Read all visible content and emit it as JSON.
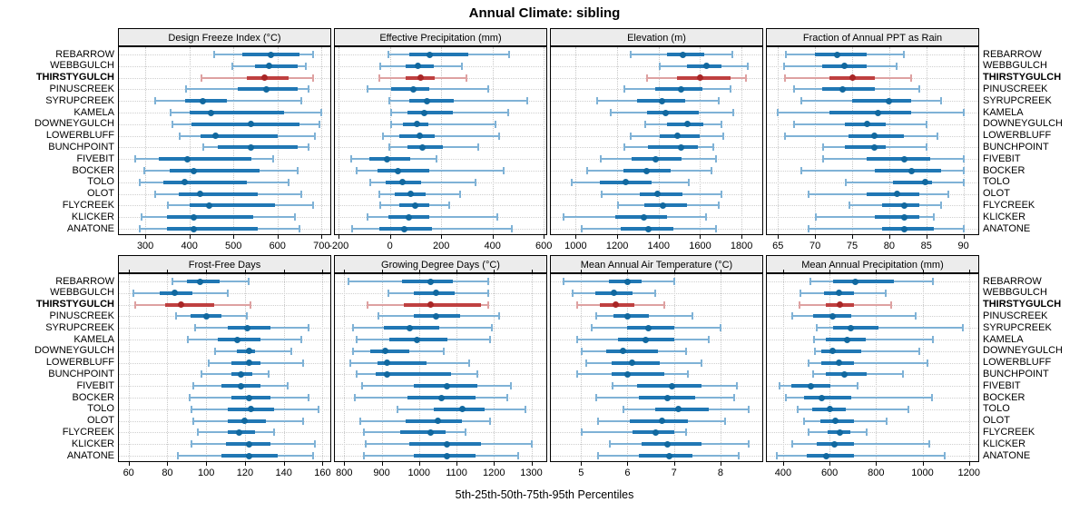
{
  "title": "Annual Climate: sibling",
  "caption": "5th-25th-50th-75th-95th Percentiles",
  "highlight_site": "THIRSTYGULCH",
  "sites": [
    "REBARROW",
    "WEBBGULCH",
    "THIRSTYGULCH",
    "PINUSCREEK",
    "SYRUPCREEK",
    "KAMELA",
    "DOWNEYGULCH",
    "LOWERBLUFF",
    "BUNCHPOINT",
    "FIVEBIT",
    "BOCKER",
    "TOLO",
    "OLOT",
    "FLYCREEK",
    "KLICKER",
    "ANATONE"
  ],
  "colors": {
    "blue_dot": "#11689f",
    "blue_thick": "#2077b4",
    "blue_thin": "#7fb2d6",
    "red_dot": "#a92626",
    "red_thick": "#bf4040",
    "red_thin": "#dea1a1",
    "grid": "#c8c8c8",
    "strip_bg": "#ececec",
    "border": "#000000"
  },
  "chart_data": [
    {
      "type": "scatter",
      "style": "percentile-dotplot",
      "title": "Design Freeze Index (°C)",
      "xlim": [
        240,
        720
      ],
      "xticks": [
        300,
        400,
        500,
        600,
        700
      ],
      "percentile_order": [
        "p5",
        "p25",
        "p50",
        "p75",
        "p95"
      ],
      "values": [
        [
          455,
          520,
          585,
          650,
          680
        ],
        [
          495,
          550,
          580,
          645,
          665
        ],
        [
          425,
          530,
          570,
          625,
          680
        ],
        [
          390,
          510,
          575,
          645,
          670
        ],
        [
          320,
          390,
          430,
          485,
          655
        ],
        [
          355,
          400,
          450,
          615,
          700
        ],
        [
          360,
          405,
          540,
          650,
          695
        ],
        [
          375,
          425,
          460,
          600,
          685
        ],
        [
          430,
          465,
          540,
          645,
          670
        ],
        [
          275,
          330,
          395,
          540,
          590
        ],
        [
          295,
          355,
          410,
          560,
          645
        ],
        [
          285,
          340,
          390,
          530,
          625
        ],
        [
          320,
          375,
          425,
          555,
          655
        ],
        [
          350,
          400,
          445,
          595,
          680
        ],
        [
          290,
          350,
          410,
          545,
          640
        ],
        [
          285,
          350,
          410,
          555,
          650
        ]
      ]
    },
    {
      "type": "scatter",
      "style": "percentile-dotplot",
      "title": "Effective Precipitation (mm)",
      "xlim": [
        -215,
        610
      ],
      "xticks": [
        -200,
        0,
        200,
        400,
        600
      ],
      "percentile_order": [
        "p5",
        "p25",
        "p50",
        "p75",
        "p95"
      ],
      "values": [
        [
          -10,
          75,
          155,
          305,
          465
        ],
        [
          -40,
          60,
          110,
          170,
          280
        ],
        [
          -45,
          60,
          120,
          175,
          300
        ],
        [
          -90,
          5,
          90,
          155,
          385
        ],
        [
          -5,
          75,
          145,
          250,
          535
        ],
        [
          0,
          70,
          135,
          245,
          460
        ],
        [
          0,
          50,
          105,
          150,
          410
        ],
        [
          -30,
          35,
          115,
          175,
          425
        ],
        [
          -5,
          70,
          125,
          205,
          345
        ],
        [
          -155,
          -80,
          -10,
          80,
          180
        ],
        [
          -135,
          -50,
          30,
          155,
          445
        ],
        [
          -80,
          -15,
          50,
          120,
          335
        ],
        [
          -45,
          20,
          80,
          140,
          275
        ],
        [
          -40,
          35,
          100,
          155,
          230
        ],
        [
          -90,
          -5,
          75,
          155,
          420
        ],
        [
          -150,
          -40,
          55,
          165,
          475
        ]
      ]
    },
    {
      "type": "scatter",
      "style": "percentile-dotplot",
      "title": "Elevation (m)",
      "xlim": [
        880,
        1900
      ],
      "xticks": [
        1000,
        1200,
        1400,
        1600,
        1800
      ],
      "percentile_order": [
        "p5",
        "p25",
        "p50",
        "p75",
        "p95"
      ],
      "values": [
        [
          1260,
          1440,
          1515,
          1620,
          1755
        ],
        [
          1400,
          1535,
          1630,
          1705,
          1830
        ],
        [
          1340,
          1490,
          1600,
          1745,
          1820
        ],
        [
          1230,
          1385,
          1510,
          1610,
          1745
        ],
        [
          1100,
          1295,
          1415,
          1530,
          1690
        ],
        [
          1165,
          1345,
          1435,
          1595,
          1760
        ],
        [
          1330,
          1440,
          1540,
          1615,
          1705
        ],
        [
          1260,
          1405,
          1490,
          1600,
          1710
        ],
        [
          1230,
          1350,
          1510,
          1590,
          1665
        ],
        [
          1115,
          1270,
          1385,
          1510,
          1675
        ],
        [
          1050,
          1230,
          1340,
          1460,
          1655
        ],
        [
          975,
          1115,
          1240,
          1365,
          1545
        ],
        [
          1120,
          1310,
          1395,
          1515,
          1705
        ],
        [
          1200,
          1330,
          1420,
          1535,
          1690
        ],
        [
          935,
          1190,
          1330,
          1440,
          1630
        ],
        [
          1025,
          1215,
          1350,
          1470,
          1675
        ]
      ]
    },
    {
      "type": "scatter",
      "style": "percentile-dotplot",
      "title": "Fraction of Annual PPT as Rain",
      "xlim": [
        63.5,
        92
      ],
      "xticks": [
        65,
        70,
        75,
        80,
        85,
        90
      ],
      "percentile_order": [
        "p5",
        "p25",
        "p50",
        "p75",
        "p95"
      ],
      "values": [
        [
          66,
          70,
          73,
          77,
          82
        ],
        [
          65.7,
          71,
          74,
          77,
          81
        ],
        [
          65.8,
          72,
          75,
          78,
          83
        ],
        [
          67,
          71,
          73.7,
          78,
          84
        ],
        [
          68,
          75,
          80,
          83,
          87
        ],
        [
          64.8,
          72,
          78.5,
          83,
          90
        ],
        [
          67,
          74,
          77,
          79.5,
          85
        ],
        [
          65.8,
          74.5,
          78,
          82,
          86.5
        ],
        [
          71,
          74,
          78,
          79.5,
          85
        ],
        [
          71,
          77,
          82,
          85.5,
          90
        ],
        [
          68,
          78,
          83,
          87,
          90
        ],
        [
          74,
          80.5,
          84.8,
          85.8,
          90
        ],
        [
          69,
          77,
          81,
          84,
          88
        ],
        [
          74.5,
          79,
          82,
          84,
          87
        ],
        [
          70,
          78,
          82,
          84,
          86
        ],
        [
          69,
          79,
          82,
          86,
          90
        ]
      ]
    },
    {
      "type": "scatter",
      "style": "percentile-dotplot",
      "title": "Frost-Free Days",
      "xlim": [
        55,
        164
      ],
      "xticks": [
        60,
        80,
        100,
        120,
        140,
        160
      ],
      "percentile_order": [
        "p5",
        "p25",
        "p50",
        "p75",
        "p95"
      ],
      "values": [
        [
          82,
          90,
          97,
          107,
          122
        ],
        [
          62,
          76,
          84,
          93,
          111
        ],
        [
          63,
          79,
          87,
          104,
          123
        ],
        [
          84,
          92,
          100,
          108,
          121
        ],
        [
          94,
          111,
          121,
          133,
          153
        ],
        [
          90,
          106,
          116,
          128,
          149
        ],
        [
          104,
          116,
          122,
          125,
          144
        ],
        [
          101,
          113,
          122,
          128,
          150
        ],
        [
          97,
          113,
          118,
          124,
          132
        ],
        [
          93,
          108,
          118,
          128,
          142
        ],
        [
          91,
          113,
          122,
          133,
          153
        ],
        [
          92,
          111,
          123,
          135,
          158
        ],
        [
          93,
          111,
          120,
          131,
          150
        ],
        [
          95,
          111,
          117,
          125,
          135
        ],
        [
          92,
          110,
          122,
          133,
          156
        ],
        [
          85,
          108,
          122,
          137,
          155
        ]
      ]
    },
    {
      "type": "scatter",
      "style": "percentile-dotplot",
      "title": "Growing Degree Days (°C)",
      "xlim": [
        775,
        1340
      ],
      "xticks": [
        800,
        900,
        1000,
        1100,
        1200,
        1300
      ],
      "percentile_order": [
        "p5",
        "p25",
        "p50",
        "p75",
        "p95"
      ],
      "values": [
        [
          810,
          955,
          1030,
          1090,
          1185
        ],
        [
          915,
          985,
          1045,
          1095,
          1185
        ],
        [
          860,
          960,
          1030,
          1165,
          1185
        ],
        [
          890,
          985,
          1045,
          1110,
          1215
        ],
        [
          820,
          905,
          975,
          1055,
          1195
        ],
        [
          830,
          920,
          995,
          1075,
          1190
        ],
        [
          820,
          870,
          910,
          975,
          1065
        ],
        [
          815,
          890,
          915,
          1020,
          1135
        ],
        [
          830,
          885,
          915,
          1085,
          1155
        ],
        [
          845,
          985,
          1075,
          1155,
          1245
        ],
        [
          825,
          970,
          1060,
          1150,
          1235
        ],
        [
          940,
          1040,
          1115,
          1175,
          1285
        ],
        [
          840,
          965,
          1050,
          1115,
          1190
        ],
        [
          850,
          950,
          1030,
          1070,
          1125
        ],
        [
          855,
          975,
          1075,
          1165,
          1300
        ],
        [
          850,
          985,
          1075,
          1150,
          1265
        ]
      ]
    },
    {
      "type": "scatter",
      "style": "percentile-dotplot",
      "title": "Mean Annual Air Temperature (°C)",
      "xlim": [
        4.35,
        8.9
      ],
      "xticks": [
        5,
        6,
        7,
        8
      ],
      "percentile_order": [
        "p5",
        "p25",
        "p50",
        "p75",
        "p95"
      ],
      "values": [
        [
          4.6,
          5.6,
          6.0,
          6.3,
          7.0
        ],
        [
          4.8,
          5.3,
          5.7,
          6.1,
          6.6
        ],
        [
          4.9,
          5.4,
          5.75,
          6.15,
          6.8
        ],
        [
          5.3,
          5.7,
          6.0,
          6.45,
          7.4
        ],
        [
          5.2,
          6.0,
          6.45,
          7.0,
          8.0
        ],
        [
          4.9,
          5.8,
          6.4,
          7.0,
          7.75
        ],
        [
          5.0,
          5.55,
          5.9,
          6.65,
          7.25
        ],
        [
          5.1,
          5.65,
          6.1,
          6.7,
          7.6
        ],
        [
          4.9,
          5.65,
          6.0,
          6.8,
          7.3
        ],
        [
          5.65,
          6.2,
          6.95,
          7.6,
          8.35
        ],
        [
          5.3,
          6.25,
          6.85,
          7.45,
          8.3
        ],
        [
          5.9,
          6.6,
          7.1,
          7.75,
          8.6
        ],
        [
          5.35,
          6.05,
          6.75,
          7.3,
          8.1
        ],
        [
          5.0,
          6.1,
          6.6,
          7.0,
          7.25
        ],
        [
          5.6,
          6.3,
          6.85,
          7.6,
          8.6
        ],
        [
          5.35,
          6.25,
          6.9,
          7.4,
          8.4
        ]
      ]
    },
    {
      "type": "scatter",
      "style": "percentile-dotplot",
      "title": "Mean Annual Precipitation (mm)",
      "xlim": [
        330,
        1240
      ],
      "xticks": [
        400,
        600,
        800,
        1000,
        1200
      ],
      "percentile_order": [
        "p5",
        "p25",
        "p50",
        "p75",
        "p95"
      ],
      "values": [
        [
          515,
          615,
          710,
          875,
          1045
        ],
        [
          470,
          575,
          640,
          705,
          840
        ],
        [
          465,
          585,
          645,
          705,
          865
        ],
        [
          435,
          530,
          615,
          695,
          970
        ],
        [
          540,
          615,
          690,
          810,
          1175
        ],
        [
          530,
          585,
          675,
          755,
          1045
        ],
        [
          535,
          565,
          615,
          735,
          985
        ],
        [
          505,
          565,
          640,
          705,
          1020
        ],
        [
          525,
          585,
          665,
          760,
          915
        ],
        [
          380,
          435,
          520,
          605,
          720
        ],
        [
          410,
          490,
          565,
          695,
          1040
        ],
        [
          460,
          525,
          600,
          670,
          940
        ],
        [
          485,
          560,
          625,
          705,
          845
        ],
        [
          505,
          590,
          645,
          690,
          760
        ],
        [
          435,
          545,
          620,
          705,
          1030
        ],
        [
          370,
          500,
          585,
          705,
          1095
        ]
      ]
    }
  ]
}
